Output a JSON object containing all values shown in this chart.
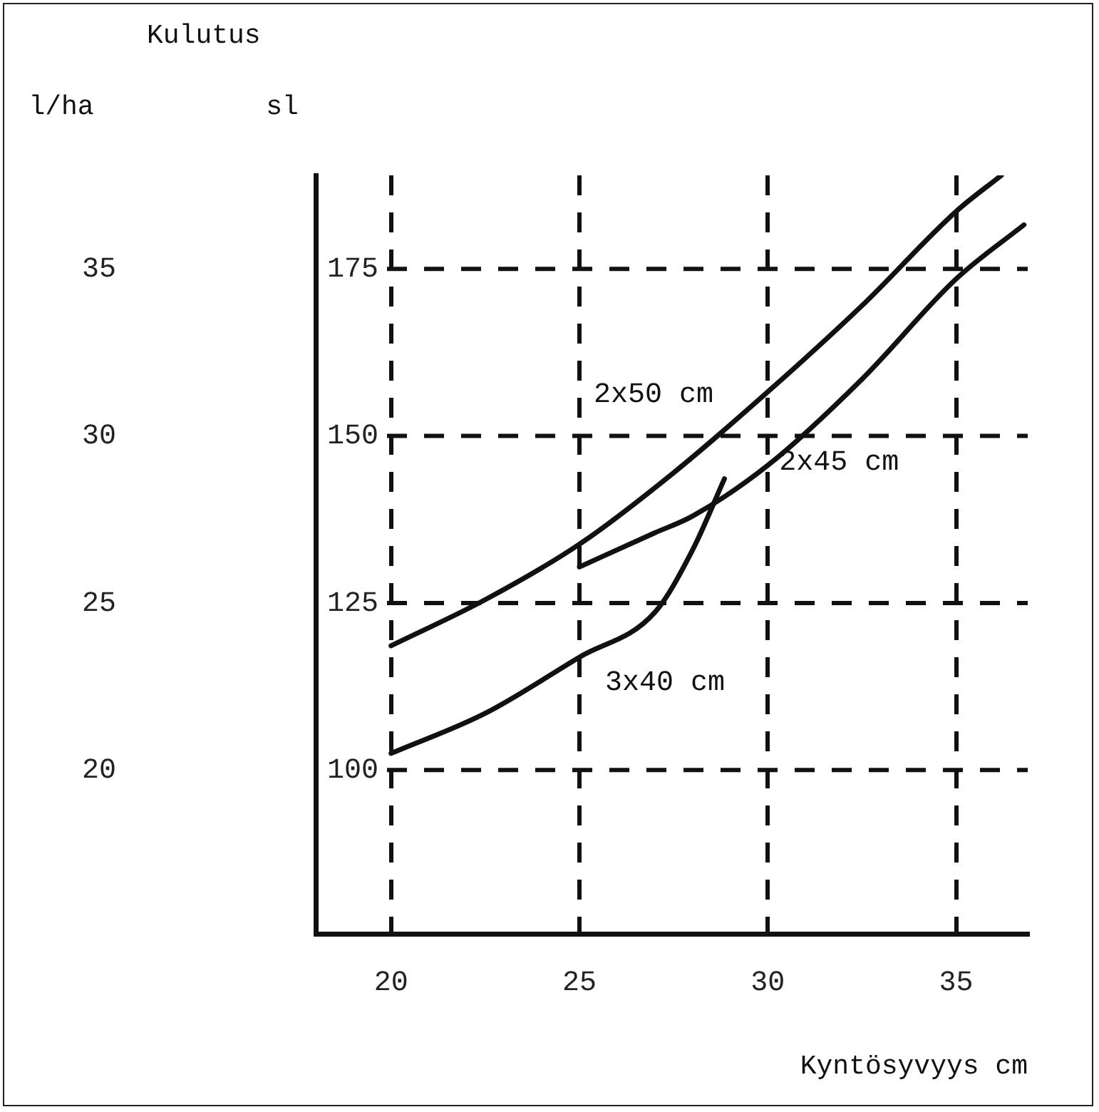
{
  "chart_data": {
    "type": "line",
    "title": "Kulutus",
    "xlabel": "Kyntösyvyys cm",
    "ylabel": "l/ha",
    "y2label": "sl",
    "xlim": [
      18,
      36.9
    ],
    "xticks": [
      20,
      25,
      30,
      35
    ],
    "ylim": [
      15.1,
      37.8
    ],
    "yticks": [
      20,
      25,
      30,
      35
    ],
    "y2lim": [
      75.5,
      189
    ],
    "y2ticks": [
      100,
      125,
      150,
      175
    ],
    "grid": true,
    "line_style": "solid",
    "marker": "none",
    "legend": false,
    "series": [
      {
        "name": "2x50 cm",
        "color": "#111111",
        "axis": "y2",
        "x": [
          20,
          22.5,
          25,
          27.5,
          30,
          32.5,
          35,
          36.2
        ],
        "values": [
          118.6,
          125.5,
          133.8,
          144.5,
          156.6,
          169.5,
          183.6,
          189
        ]
      },
      {
        "name": "2x45 cm",
        "color": "#111111",
        "axis": "y2",
        "x": [
          25,
          27,
          28,
          30,
          32.5,
          35,
          36.8
        ],
        "values": [
          130.4,
          135.5,
          138,
          145.6,
          158.5,
          173.5,
          181.6
        ]
      },
      {
        "name": "3x40 cm",
        "color": "#111111",
        "axis": "y2",
        "x": [
          20,
          22.5,
          25,
          27,
          28,
          28.85
        ],
        "values": [
          102.5,
          108.5,
          116.9,
          123.6,
          132.9,
          143.6
        ]
      }
    ]
  }
}
